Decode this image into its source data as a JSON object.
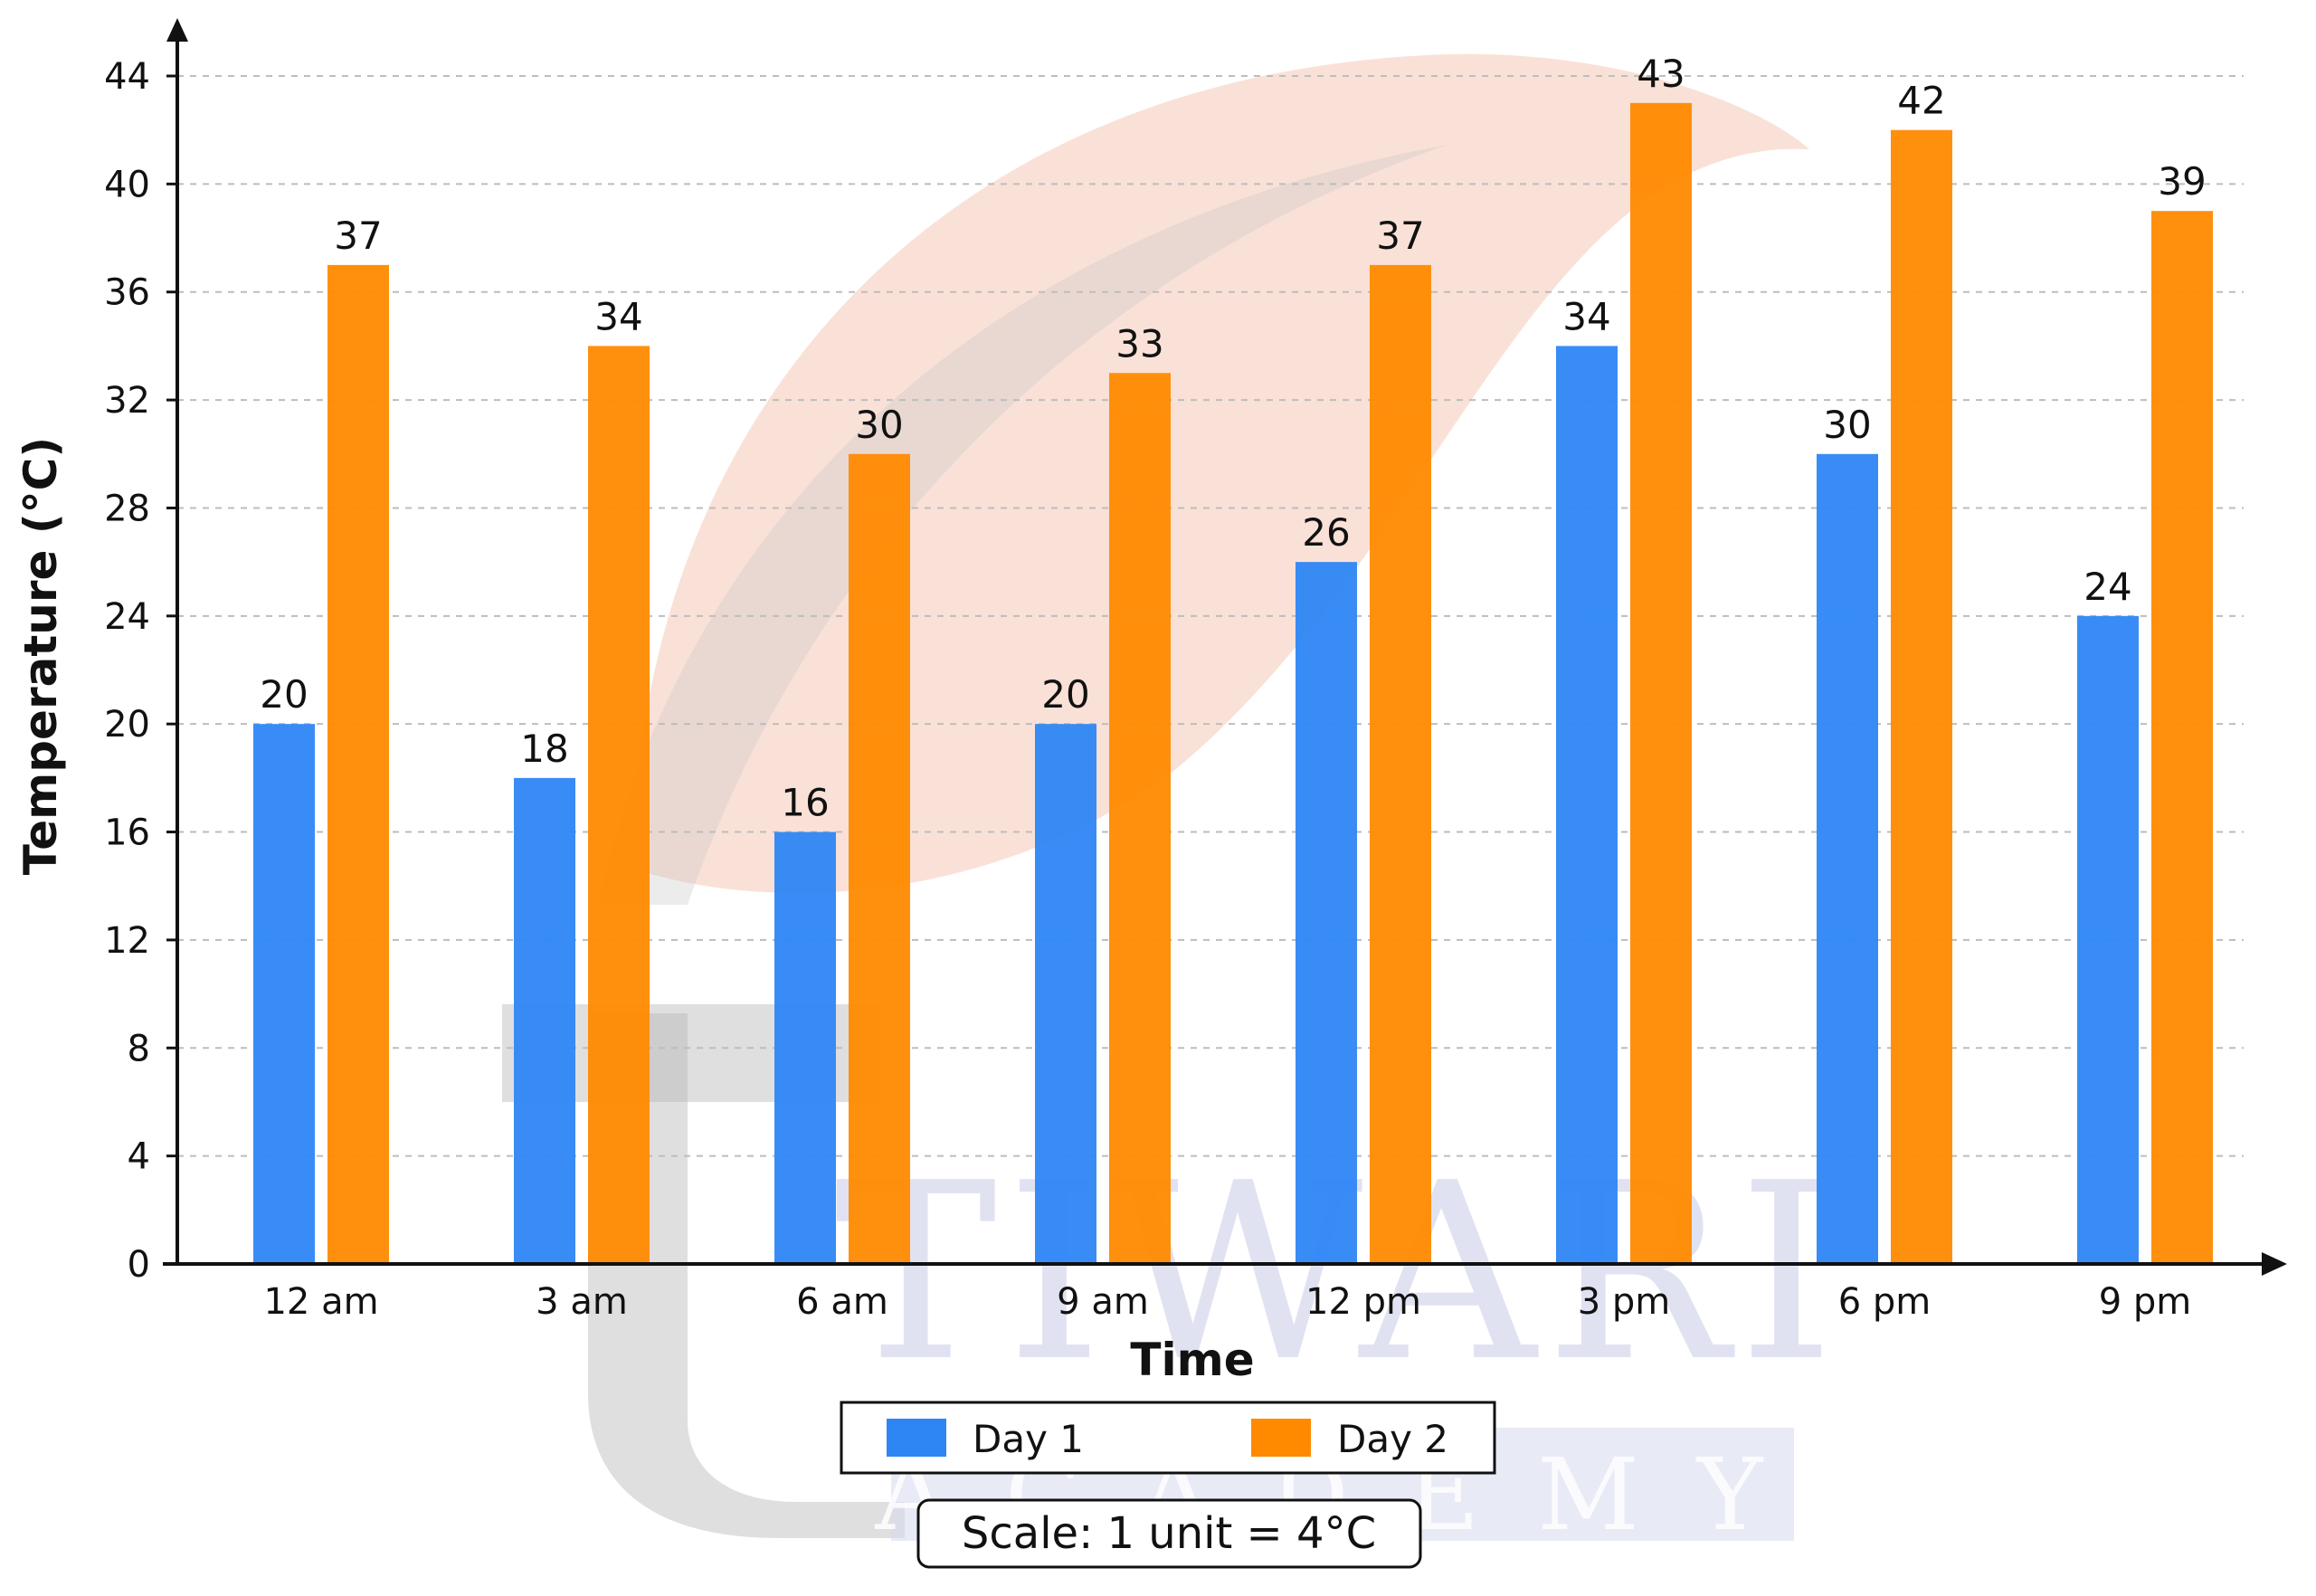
{
  "watermark": {
    "brand": "TIWARI",
    "sub": "ACADEMY"
  },
  "chart_data": {
    "type": "bar",
    "xlabel": "Time",
    "ylabel": "Temperature (°C)",
    "ylim": [
      0,
      44
    ],
    "yticks": [
      0,
      4,
      8,
      12,
      16,
      20,
      24,
      28,
      32,
      36,
      40,
      44
    ],
    "grid": true,
    "legend_position": "bottom",
    "categories": [
      "12 am",
      "3 am",
      "6 am",
      "9 am",
      "12 pm",
      "3 pm",
      "6 pm",
      "9 pm"
    ],
    "series": [
      {
        "name": "Day 1",
        "color": "#2e86f5",
        "values": [
          20,
          18,
          16,
          20,
          26,
          34,
          30,
          24
        ]
      },
      {
        "name": "Day 2",
        "color": "#ff8a00",
        "values": [
          37,
          34,
          30,
          33,
          37,
          43,
          42,
          39
        ]
      }
    ],
    "note": "Scale: 1 unit = 4°C"
  }
}
